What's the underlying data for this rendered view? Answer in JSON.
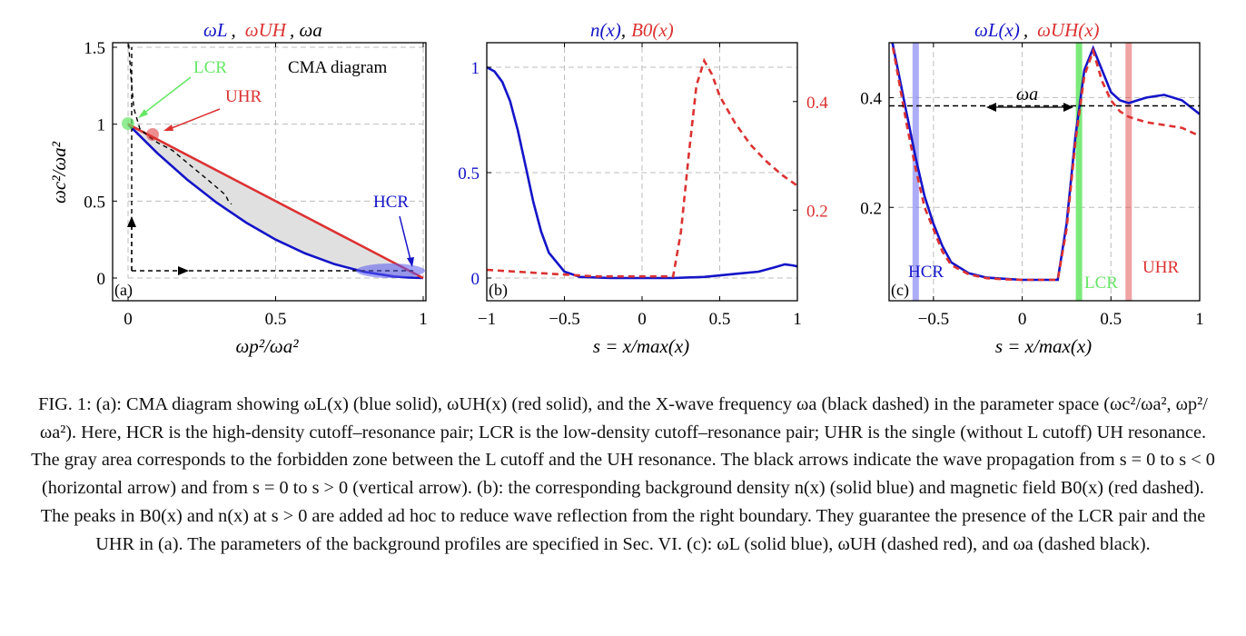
{
  "figure": {
    "caption": "FIG. 1: (a): CMA diagram showing ωL(x) (blue solid), ωUH(x) (red solid), and the X-wave frequency ωa (black dashed) in the parameter space (ωc²/ωa², ωp²/ωa²). Here, HCR is the high-density cutoff–resonance pair; LCR is the low-density cutoff–resonance pair; UHR is the single (without L cutoff) UH resonance. The gray area corresponds to the forbidden zone between the L cutoff and the UH resonance. The black arrows indicate the wave propagation from s = 0 to s < 0 (horizontal arrow) and from s = 0 to s > 0 (vertical arrow). (b): the corresponding background density n(x) (solid blue) and magnetic field B0(x) (red dashed). The peaks in B0(x) and n(x) at s > 0 are added ad hoc to reduce wave reflection from the right boundary. They guarantee the presence of the LCR pair and the UHR in (a). The parameters of the background profiles are specified in Sec. VI. (c): ωL (solid blue), ωUH (dashed red), and ωa (dashed black)."
  },
  "colors": {
    "blue": "#1414c8",
    "red": "#dc3232",
    "green": "#64e664",
    "black": "#000000",
    "grid": "#bdbdbd",
    "fill": "#e0e0e0"
  },
  "chart_data": [
    {
      "panel": "(a)",
      "type": "line",
      "title_parts": [
        "ωL",
        ",",
        "ωUH",
        ", ωa"
      ],
      "xlabel": "ωp²/ωa²",
      "ylabel": "ωc²/ωa²",
      "xlim": [
        0,
        1
      ],
      "ylim": [
        0,
        1.5
      ],
      "xticks": [
        "0",
        "0.5",
        "1"
      ],
      "yticks": [
        "0",
        "0.5",
        "1",
        "1.5"
      ],
      "grid": true,
      "inner_label": "CMA diagram",
      "panel_label": "(a)",
      "series": [
        {
          "style": "solid-blue",
          "x": [
            0,
            0.1,
            0.2,
            0.3,
            0.4,
            0.5,
            0.6,
            0.7,
            0.8,
            0.9,
            0.95,
            1.0
          ],
          "y": [
            1.0,
            0.81,
            0.64,
            0.49,
            0.36,
            0.25,
            0.16,
            0.09,
            0.04,
            0.01,
            0.003,
            0
          ]
        },
        {
          "style": "solid-red",
          "x": [
            0,
            1
          ],
          "y": [
            1.0,
            0
          ]
        },
        {
          "style": "dashed-black",
          "x": [
            0.002,
            0.01,
            0.02,
            0.04,
            0.07,
            0.1,
            0.15,
            0.2,
            0.25,
            0.3,
            0.33,
            0.34,
            0.35
          ],
          "y": [
            1.52,
            1.3,
            1.1,
            0.97,
            0.92,
            0.88,
            0.83,
            0.75,
            0.67,
            0.59,
            0.54,
            0.5,
            0.48
          ]
        }
      ],
      "markers": [
        {
          "label": "LCR",
          "x": 0,
          "y": 1.0,
          "color": "green"
        },
        {
          "label": "UHR",
          "x": 0.08,
          "y": 0.93,
          "color": "red"
        },
        {
          "label": "HCR",
          "x": 0.9,
          "y": 0.05,
          "color": "blue"
        }
      ],
      "annotations": [
        "LCR",
        "UHR",
        "HCR"
      ]
    },
    {
      "panel": "(b)",
      "type": "line",
      "title_parts": [
        "n(x)",
        ",",
        "B0(x)"
      ],
      "xlabel": "s = x/max(x)",
      "xlim": [
        -1,
        1
      ],
      "xticks": [
        "−1",
        "−0.5",
        "0",
        "0.5",
        "1"
      ],
      "yticks_left": [
        "0",
        "0.5",
        "1"
      ],
      "yticks_right": [
        "0.2",
        "0.4"
      ],
      "ylim_left": [
        0,
        1
      ],
      "ylim_right": [
        0.075,
        0.5
      ],
      "grid": true,
      "panel_label": "(b)",
      "series": [
        {
          "name": "n(x)",
          "style": "solid-blue",
          "axis": "left",
          "x": [
            -1,
            -0.95,
            -0.9,
            -0.85,
            -0.8,
            -0.75,
            -0.7,
            -0.65,
            -0.6,
            -0.5,
            -0.4,
            -0.2,
            0,
            0.2,
            0.4,
            0.6,
            0.75,
            0.85,
            0.92,
            0.97,
            1.0
          ],
          "y": [
            1.0,
            0.98,
            0.93,
            0.84,
            0.7,
            0.53,
            0.36,
            0.22,
            0.12,
            0.03,
            0.005,
            0,
            0,
            0,
            0.005,
            0.02,
            0.03,
            0.05,
            0.065,
            0.06,
            0.055
          ]
        },
        {
          "name": "B0(x)",
          "style": "dashed-red",
          "axis": "right",
          "x": [
            -1,
            -0.6,
            -0.3,
            0,
            0.2,
            0.25,
            0.3,
            0.35,
            0.4,
            0.45,
            0.5,
            0.6,
            0.7,
            0.8,
            0.9,
            1.0
          ],
          "y": [
            0.09,
            0.083,
            0.078,
            0.078,
            0.078,
            0.16,
            0.3,
            0.43,
            0.475,
            0.45,
            0.41,
            0.36,
            0.32,
            0.29,
            0.265,
            0.245
          ]
        }
      ]
    },
    {
      "panel": "(c)",
      "type": "line",
      "title_parts": [
        "ωL(x)",
        ",",
        "ωUH(x)"
      ],
      "xlabel": "s = x/max(x)",
      "xlim": [
        -0.75,
        1
      ],
      "ylim": [
        0.03,
        0.5
      ],
      "xticks": [
        "−0.5",
        "0",
        "0.5",
        "1"
      ],
      "yticks": [
        "0.2",
        "0.4"
      ],
      "grid": true,
      "panel_label": "(c)",
      "series": [
        {
          "name": "ωL",
          "style": "solid-blue",
          "x": [
            -0.75,
            -0.7,
            -0.65,
            -0.6,
            -0.55,
            -0.5,
            -0.45,
            -0.4,
            -0.3,
            -0.2,
            -0.1,
            0,
            0.1,
            0.2,
            0.25,
            0.3,
            0.35,
            0.4,
            0.45,
            0.5,
            0.55,
            0.6,
            0.65,
            0.7,
            0.8,
            0.9,
            1.0
          ],
          "y": [
            0.53,
            0.45,
            0.37,
            0.29,
            0.22,
            0.17,
            0.13,
            0.1,
            0.08,
            0.072,
            0.07,
            0.068,
            0.068,
            0.068,
            0.17,
            0.33,
            0.45,
            0.49,
            0.45,
            0.41,
            0.395,
            0.39,
            0.395,
            0.4,
            0.405,
            0.395,
            0.37
          ]
        },
        {
          "name": "ωUH",
          "style": "dashed-red",
          "x": [
            -0.75,
            -0.7,
            -0.65,
            -0.6,
            -0.55,
            -0.5,
            -0.45,
            -0.4,
            -0.3,
            -0.2,
            -0.1,
            0,
            0.1,
            0.2,
            0.25,
            0.3,
            0.35,
            0.4,
            0.45,
            0.5,
            0.55,
            0.6,
            0.65,
            0.7,
            0.8,
            0.9,
            1.0
          ],
          "y": [
            0.53,
            0.44,
            0.35,
            0.27,
            0.2,
            0.16,
            0.12,
            0.095,
            0.078,
            0.071,
            0.069,
            0.068,
            0.068,
            0.068,
            0.16,
            0.32,
            0.44,
            0.485,
            0.43,
            0.395,
            0.375,
            0.365,
            0.36,
            0.355,
            0.35,
            0.345,
            0.33
          ]
        },
        {
          "name": "ωa",
          "style": "dashed-black",
          "x": [
            -0.75,
            1.0
          ],
          "y": [
            0.385,
            0.385
          ]
        }
      ],
      "bands": [
        {
          "label": "HCR",
          "x": -0.6,
          "color": "blue"
        },
        {
          "label": "LCR",
          "x": 0.32,
          "color": "green"
        },
        {
          "label": "UHR",
          "x": 0.6,
          "color": "red"
        }
      ],
      "annotation": "ωa"
    }
  ]
}
